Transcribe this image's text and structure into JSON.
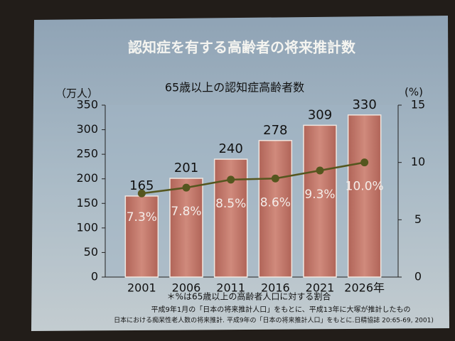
{
  "chart_data": {
    "type": "bar",
    "title": "認知症を有する高齢者の将来推計数",
    "subtitle": "65歳以上の認知症高齢者数",
    "y_label": "（万人）",
    "y2_label": "(%)",
    "notes": [
      "＊%は65歳以上の高齢者人口に対する割合",
      "平成9年1月の「日本の将来推計人口」をもとに、平成13年に大塚が推計したもの",
      "日本における痴呆性老人数の将来推計. 平成9年の「日本の将来推計人口」をもとに.日精協誌 20:65-69, 2001)"
    ],
    "categories": [
      "2001",
      "2006",
      "2011",
      "2016",
      "2021",
      "2026年"
    ],
    "series": [
      {
        "type": "bar",
        "color": "#c4786a",
        "values": [
          165,
          201,
          240,
          278,
          309,
          330
        ]
      },
      {
        "type": "line",
        "axis": "y2",
        "color": "#55561e",
        "values": [
          7.3,
          7.8,
          8.5,
          8.6,
          9.3,
          10.0
        ],
        "value_labels": [
          "7.3%",
          "7.8%",
          "8.5%",
          "8.6%",
          "9.3%",
          "10.0%"
        ]
      }
    ],
    "ylim": [
      0,
      350
    ],
    "yticks": [
      0,
      50,
      100,
      150,
      200,
      250,
      300,
      350
    ],
    "y2lim": [
      0,
      15
    ],
    "y2ticks": [
      0,
      5,
      10,
      15
    ]
  }
}
